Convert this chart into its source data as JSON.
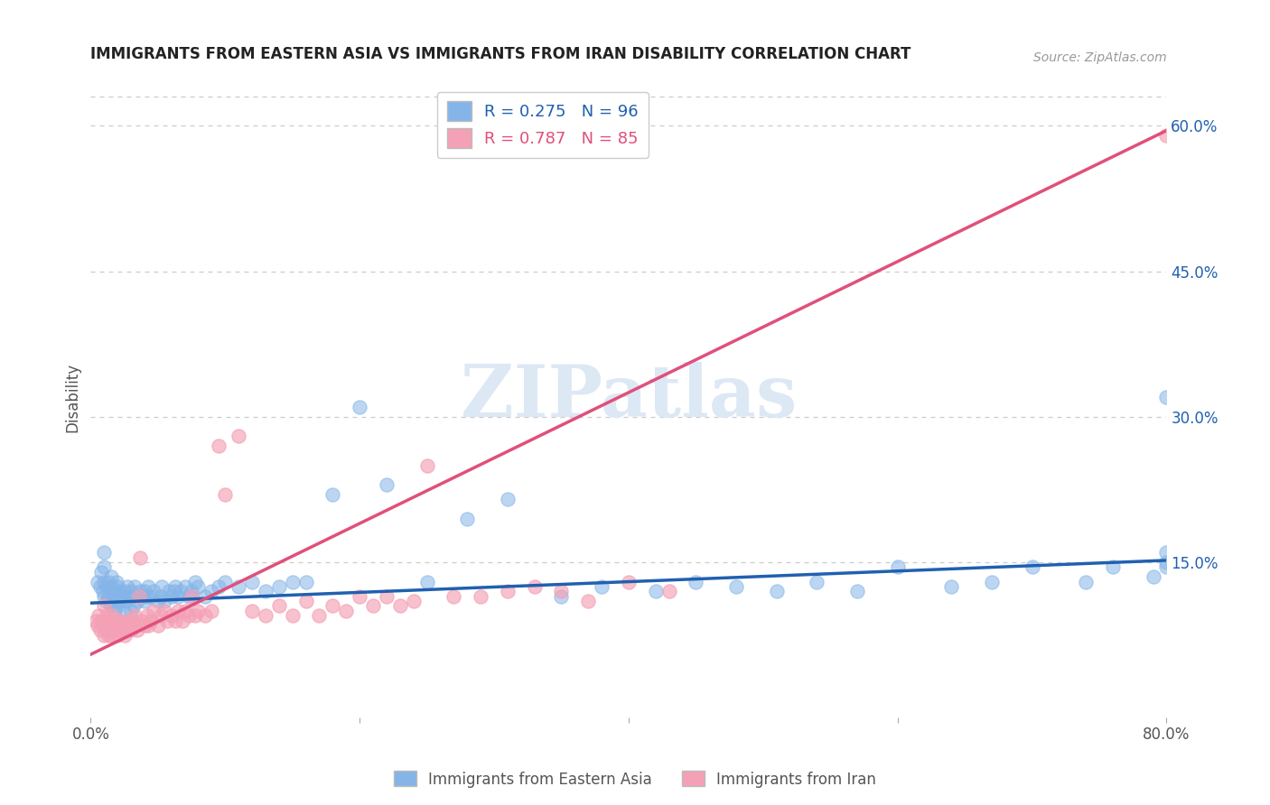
{
  "title": "IMMIGRANTS FROM EASTERN ASIA VS IMMIGRANTS FROM IRAN DISABILITY CORRELATION CHART",
  "source": "Source: ZipAtlas.com",
  "ylabel": "Disability",
  "xlim": [
    0.0,
    0.8
  ],
  "ylim": [
    -0.01,
    0.65
  ],
  "plot_ylim": [
    -0.01,
    0.65
  ],
  "yticks_right": [
    0.15,
    0.3,
    0.45,
    0.6
  ],
  "ytick_labels_right": [
    "15.0%",
    "30.0%",
    "45.0%",
    "60.0%"
  ],
  "blue_color": "#85b5e8",
  "pink_color": "#f4a0b5",
  "blue_line_color": "#2060b0",
  "pink_line_color": "#e0507a",
  "r_blue": 0.275,
  "n_blue": 96,
  "r_pink": 0.787,
  "n_pink": 85,
  "legend_label_blue": "Immigrants from Eastern Asia",
  "legend_label_pink": "Immigrants from Iran",
  "watermark": "ZIPatlas",
  "background_color": "#ffffff",
  "grid_color": "#cccccc",
  "title_color": "#222222",
  "axis_label_color": "#555555",
  "blue_reg_slope": 0.055,
  "blue_reg_intercept": 0.108,
  "pink_reg_slope": 0.675,
  "pink_reg_intercept": 0.055,
  "blue_scatter_x": [
    0.005,
    0.007,
    0.008,
    0.009,
    0.01,
    0.01,
    0.01,
    0.01,
    0.012,
    0.012,
    0.013,
    0.013,
    0.015,
    0.015,
    0.015,
    0.016,
    0.016,
    0.017,
    0.018,
    0.018,
    0.019,
    0.02,
    0.02,
    0.02,
    0.021,
    0.022,
    0.023,
    0.025,
    0.025,
    0.026,
    0.027,
    0.028,
    0.03,
    0.03,
    0.031,
    0.032,
    0.033,
    0.035,
    0.037,
    0.038,
    0.04,
    0.04,
    0.042,
    0.043,
    0.045,
    0.047,
    0.05,
    0.052,
    0.053,
    0.055,
    0.058,
    0.06,
    0.062,
    0.063,
    0.065,
    0.067,
    0.07,
    0.073,
    0.075,
    0.078,
    0.08,
    0.085,
    0.09,
    0.095,
    0.1,
    0.11,
    0.12,
    0.13,
    0.14,
    0.15,
    0.16,
    0.18,
    0.2,
    0.22,
    0.25,
    0.28,
    0.31,
    0.35,
    0.38,
    0.42,
    0.45,
    0.48,
    0.51,
    0.54,
    0.57,
    0.6,
    0.64,
    0.67,
    0.7,
    0.74,
    0.76,
    0.79,
    0.8,
    0.8,
    0.8,
    0.8
  ],
  "blue_scatter_y": [
    0.13,
    0.125,
    0.14,
    0.12,
    0.115,
    0.13,
    0.145,
    0.16,
    0.11,
    0.125,
    0.115,
    0.13,
    0.105,
    0.12,
    0.135,
    0.11,
    0.125,
    0.115,
    0.1,
    0.12,
    0.13,
    0.105,
    0.115,
    0.125,
    0.11,
    0.12,
    0.115,
    0.1,
    0.12,
    0.11,
    0.125,
    0.115,
    0.1,
    0.12,
    0.115,
    0.105,
    0.125,
    0.11,
    0.12,
    0.115,
    0.11,
    0.12,
    0.115,
    0.125,
    0.115,
    0.12,
    0.11,
    0.115,
    0.125,
    0.11,
    0.12,
    0.115,
    0.12,
    0.125,
    0.115,
    0.12,
    0.125,
    0.115,
    0.12,
    0.13,
    0.125,
    0.115,
    0.12,
    0.125,
    0.13,
    0.125,
    0.13,
    0.12,
    0.125,
    0.13,
    0.13,
    0.22,
    0.31,
    0.23,
    0.13,
    0.195,
    0.215,
    0.115,
    0.125,
    0.12,
    0.13,
    0.125,
    0.12,
    0.13,
    0.12,
    0.145,
    0.125,
    0.13,
    0.145,
    0.13,
    0.145,
    0.135,
    0.145,
    0.15,
    0.16,
    0.32
  ],
  "pink_scatter_x": [
    0.004,
    0.005,
    0.006,
    0.007,
    0.008,
    0.009,
    0.01,
    0.01,
    0.01,
    0.011,
    0.012,
    0.012,
    0.013,
    0.013,
    0.014,
    0.015,
    0.015,
    0.016,
    0.016,
    0.017,
    0.018,
    0.019,
    0.02,
    0.02,
    0.021,
    0.022,
    0.023,
    0.025,
    0.026,
    0.027,
    0.028,
    0.03,
    0.031,
    0.032,
    0.033,
    0.035,
    0.036,
    0.037,
    0.038,
    0.04,
    0.042,
    0.043,
    0.045,
    0.047,
    0.05,
    0.052,
    0.055,
    0.057,
    0.06,
    0.063,
    0.065,
    0.068,
    0.07,
    0.073,
    0.075,
    0.078,
    0.08,
    0.085,
    0.09,
    0.095,
    0.1,
    0.11,
    0.12,
    0.13,
    0.14,
    0.15,
    0.16,
    0.17,
    0.18,
    0.19,
    0.2,
    0.21,
    0.22,
    0.23,
    0.24,
    0.25,
    0.27,
    0.29,
    0.31,
    0.33,
    0.35,
    0.37,
    0.4,
    0.43,
    0.8
  ],
  "pink_scatter_y": [
    0.09,
    0.085,
    0.095,
    0.08,
    0.09,
    0.085,
    0.075,
    0.09,
    0.105,
    0.085,
    0.08,
    0.095,
    0.075,
    0.09,
    0.08,
    0.075,
    0.09,
    0.08,
    0.095,
    0.085,
    0.08,
    0.09,
    0.075,
    0.085,
    0.08,
    0.09,
    0.085,
    0.075,
    0.08,
    0.09,
    0.085,
    0.08,
    0.09,
    0.085,
    0.095,
    0.08,
    0.115,
    0.155,
    0.09,
    0.085,
    0.095,
    0.085,
    0.09,
    0.1,
    0.085,
    0.095,
    0.1,
    0.09,
    0.095,
    0.09,
    0.1,
    0.09,
    0.1,
    0.095,
    0.115,
    0.095,
    0.1,
    0.095,
    0.1,
    0.27,
    0.22,
    0.28,
    0.1,
    0.095,
    0.105,
    0.095,
    0.11,
    0.095,
    0.105,
    0.1,
    0.115,
    0.105,
    0.115,
    0.105,
    0.11,
    0.25,
    0.115,
    0.115,
    0.12,
    0.125,
    0.12,
    0.11,
    0.13,
    0.12,
    0.59
  ]
}
